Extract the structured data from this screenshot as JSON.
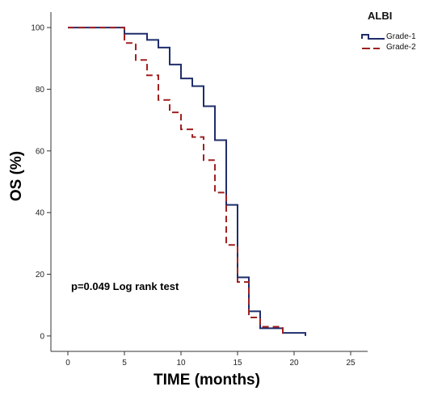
{
  "chart_data": {
    "type": "line",
    "step": true,
    "xlabel": "TIME (months)",
    "ylabel": "OS (%)",
    "xlim": [
      -1.5,
      26.5
    ],
    "ylim": [
      -5,
      105
    ],
    "xticks": [
      0,
      5,
      10,
      15,
      20,
      25
    ],
    "yticks": [
      0,
      20,
      40,
      60,
      80,
      100
    ],
    "grid": false,
    "legend": {
      "title": "ALBI",
      "position": "top-right"
    },
    "annotations": [
      {
        "text": "p=0.049 Log rank test"
      }
    ],
    "series": [
      {
        "name": "Grade-1",
        "color": "#1f2d6b",
        "line_style": "solid",
        "points": [
          [
            0,
            100
          ],
          [
            5,
            100
          ],
          [
            5,
            98
          ],
          [
            7,
            98
          ],
          [
            7,
            96
          ],
          [
            8,
            96
          ],
          [
            8,
            93.5
          ],
          [
            9,
            93.5
          ],
          [
            9,
            88
          ],
          [
            10,
            88
          ],
          [
            10,
            83.5
          ],
          [
            11,
            83.5
          ],
          [
            11,
            81
          ],
          [
            12,
            81
          ],
          [
            12,
            74.5
          ],
          [
            13,
            74.5
          ],
          [
            13,
            63.5
          ],
          [
            14,
            63.5
          ],
          [
            14,
            42.5
          ],
          [
            15,
            42.5
          ],
          [
            15,
            19
          ],
          [
            16,
            19
          ],
          [
            16,
            8
          ],
          [
            17,
            8
          ],
          [
            17,
            2.5
          ],
          [
            19,
            2.5
          ],
          [
            19,
            1
          ],
          [
            21,
            1
          ],
          [
            21,
            0
          ]
        ]
      },
      {
        "name": "Grade-2",
        "color": "#a02020",
        "line_style": "dashed",
        "points": [
          [
            0,
            100
          ],
          [
            5,
            100
          ],
          [
            5,
            95
          ],
          [
            6,
            95
          ],
          [
            6,
            89.5
          ],
          [
            7,
            89.5
          ],
          [
            7,
            84.5
          ],
          [
            8,
            84.5
          ],
          [
            8,
            76.5
          ],
          [
            9,
            76.5
          ],
          [
            9,
            72.5
          ],
          [
            10,
            72.5
          ],
          [
            10,
            67
          ],
          [
            11,
            67
          ],
          [
            11,
            64.5
          ],
          [
            12,
            64.5
          ],
          [
            12,
            57
          ],
          [
            13,
            57
          ],
          [
            13,
            46.5
          ],
          [
            14,
            46.5
          ],
          [
            14,
            29.5
          ],
          [
            15,
            29.5
          ],
          [
            15,
            17.5
          ],
          [
            16,
            17.5
          ],
          [
            16,
            6
          ],
          [
            17,
            6
          ],
          [
            17,
            3
          ],
          [
            19,
            3
          ],
          [
            19,
            0
          ]
        ]
      }
    ]
  }
}
